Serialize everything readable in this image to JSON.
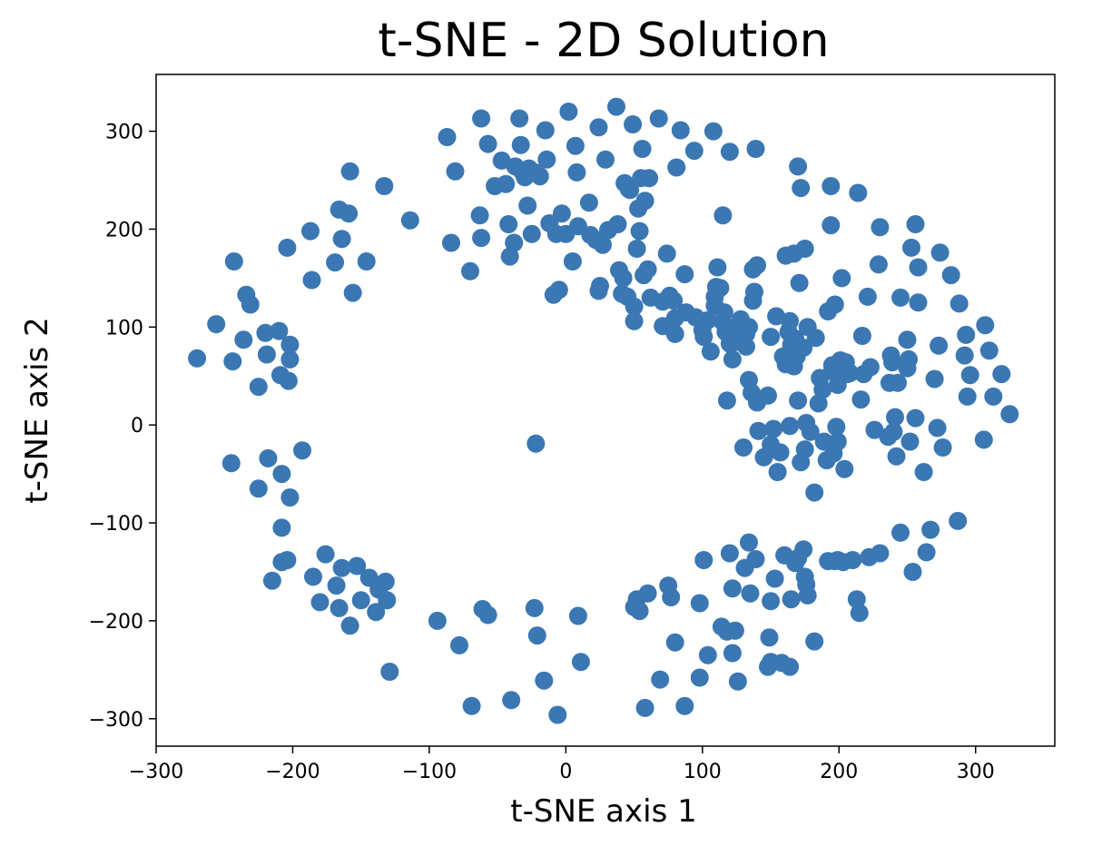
{
  "chart_data": {
    "type": "scatter",
    "title": "t-SNE - 2D Solution",
    "xlabel": "t-SNE axis 1",
    "ylabel": "t-SNE axis 2",
    "xlim": [
      -300,
      358
    ],
    "ylim": [
      -328,
      358
    ],
    "xticks": [
      -300,
      -200,
      -100,
      0,
      100,
      200,
      300
    ],
    "xtick_labels": [
      "−300",
      "−200",
      "−100",
      "0",
      "100",
      "200",
      "300"
    ],
    "yticks": [
      -300,
      -200,
      -100,
      0,
      100,
      200,
      300
    ],
    "ytick_labels": [
      "−300",
      "−200",
      "−100",
      "0",
      "100",
      "200",
      "300"
    ],
    "grid": false,
    "marker_color": "#3a77b3",
    "points": [
      [
        -270,
        68
      ],
      [
        -256,
        103
      ],
      [
        -244,
        65
      ],
      [
        -243,
        167
      ],
      [
        -236,
        87
      ],
      [
        -234,
        133
      ],
      [
        -231,
        123
      ],
      [
        -225,
        39
      ],
      [
        -220,
        94
      ],
      [
        -219,
        72
      ],
      [
        -210,
        96
      ],
      [
        -209,
        51
      ],
      [
        -203,
        45
      ],
      [
        -202,
        67
      ],
      [
        -202,
        82
      ],
      [
        -204,
        181
      ],
      [
        -187,
        198
      ],
      [
        -186,
        148
      ],
      [
        -169,
        166
      ],
      [
        -164,
        190
      ],
      [
        -166,
        220
      ],
      [
        -159,
        216
      ],
      [
        -158,
        259
      ],
      [
        -156,
        135
      ],
      [
        -146,
        167
      ],
      [
        -133,
        244
      ],
      [
        -114,
        209
      ],
      [
        -87,
        294
      ],
      [
        -84,
        186
      ],
      [
        -81,
        259
      ],
      [
        -70,
        157
      ],
      [
        -62,
        313
      ],
      [
        -63,
        214
      ],
      [
        -62,
        191
      ],
      [
        -57,
        287
      ],
      [
        -52,
        244
      ],
      [
        -47,
        270
      ],
      [
        -44,
        246
      ],
      [
        -42,
        205
      ],
      [
        -41,
        172
      ],
      [
        -38,
        186
      ],
      [
        -37,
        264
      ],
      [
        -34,
        313
      ],
      [
        -33,
        286
      ],
      [
        -32,
        259
      ],
      [
        -30,
        253
      ],
      [
        -28,
        224
      ],
      [
        -27,
        262
      ],
      [
        -25,
        195
      ],
      [
        -23,
        258
      ],
      [
        -19,
        254
      ],
      [
        -14,
        271
      ],
      [
        -15,
        301
      ],
      [
        -12,
        206
      ],
      [
        -9,
        133
      ],
      [
        -7,
        195
      ],
      [
        -5,
        138
      ],
      [
        -3,
        216
      ],
      [
        0,
        195
      ],
      [
        2,
        320
      ],
      [
        5,
        167
      ],
      [
        7,
        285
      ],
      [
        8,
        258
      ],
      [
        9,
        203
      ],
      [
        17,
        227
      ],
      [
        18,
        194
      ],
      [
        22,
        189
      ],
      [
        24,
        137
      ],
      [
        24,
        304
      ],
      [
        25,
        142
      ],
      [
        27,
        184
      ],
      [
        29,
        271
      ],
      [
        31,
        199
      ],
      [
        37,
        325
      ],
      [
        38,
        205
      ],
      [
        39,
        158
      ],
      [
        41,
        134
      ],
      [
        42,
        150
      ],
      [
        43,
        247
      ],
      [
        45,
        131
      ],
      [
        46,
        241
      ],
      [
        47,
        240
      ],
      [
        49,
        307
      ],
      [
        50,
        121
      ],
      [
        50,
        106
      ],
      [
        52,
        180
      ],
      [
        53,
        221
      ],
      [
        54,
        198
      ],
      [
        55,
        252
      ],
      [
        56,
        282
      ],
      [
        57,
        153
      ],
      [
        58,
        229
      ],
      [
        60,
        159
      ],
      [
        61,
        252
      ],
      [
        62,
        130
      ],
      [
        68,
        313
      ],
      [
        71,
        126
      ],
      [
        71,
        101
      ],
      [
        74,
        175
      ],
      [
        76,
        132
      ],
      [
        79,
        127
      ],
      [
        80,
        93
      ],
      [
        80,
        109
      ],
      [
        81,
        263
      ],
      [
        84,
        301
      ],
      [
        87,
        154
      ],
      [
        88,
        115
      ],
      [
        94,
        280
      ],
      [
        95,
        110
      ],
      [
        100,
        97
      ],
      [
        101,
        90
      ],
      [
        104,
        107
      ],
      [
        108,
        300
      ],
      [
        106,
        75
      ],
      [
        109,
        131
      ],
      [
        109,
        122
      ],
      [
        110,
        141
      ],
      [
        111,
        161
      ],
      [
        113,
        140
      ],
      [
        115,
        105
      ],
      [
        115,
        214
      ],
      [
        116,
        115
      ],
      [
        117,
        95
      ],
      [
        118,
        25
      ],
      [
        120,
        83
      ],
      [
        122,
        67
      ],
      [
        120,
        279
      ],
      [
        122,
        99
      ],
      [
        125,
        85
      ],
      [
        128,
        108
      ],
      [
        132,
        93
      ],
      [
        132,
        80
      ],
      [
        134,
        100
      ],
      [
        137,
        159
      ],
      [
        137,
        127
      ],
      [
        138,
        136
      ],
      [
        140,
        163
      ],
      [
        139,
        282
      ],
      [
        134,
        46
      ],
      [
        136,
        33
      ],
      [
        130,
        -23
      ],
      [
        140,
        23
      ],
      [
        141,
        -6
      ],
      [
        145,
        -33
      ],
      [
        148,
        30
      ],
      [
        150,
        90
      ],
      [
        150,
        -20
      ],
      [
        152,
        -4
      ],
      [
        154,
        111
      ],
      [
        155,
        -48
      ],
      [
        157,
        -28
      ],
      [
        159,
        70
      ],
      [
        161,
        62
      ],
      [
        161,
        173
      ],
      [
        163,
        95
      ],
      [
        164,
        -1
      ],
      [
        164,
        106
      ],
      [
        165,
        82
      ],
      [
        166,
        75
      ],
      [
        167,
        175
      ],
      [
        167,
        60
      ],
      [
        168,
        88
      ],
      [
        169,
        70
      ],
      [
        170,
        25
      ],
      [
        170,
        264
      ],
      [
        171,
        145
      ],
      [
        172,
        242
      ],
      [
        172,
        -38
      ],
      [
        174,
        79
      ],
      [
        175,
        180
      ],
      [
        175,
        -25
      ],
      [
        176,
        2
      ],
      [
        177,
        100
      ],
      [
        179,
        -7
      ],
      [
        182,
        -69
      ],
      [
        183,
        89
      ],
      [
        185,
        22
      ],
      [
        186,
        48
      ],
      [
        188,
        36
      ],
      [
        189,
        -17
      ],
      [
        191,
        -36
      ],
      [
        192,
        116
      ],
      [
        194,
        204
      ],
      [
        194,
        244
      ],
      [
        195,
        61
      ],
      [
        195,
        55
      ],
      [
        196,
        -29
      ],
      [
        197,
        123
      ],
      [
        198,
        -2
      ],
      [
        199,
        41
      ],
      [
        199,
        -17
      ],
      [
        200,
        54
      ],
      [
        201,
        66
      ],
      [
        202,
        150
      ],
      [
        204,
        -45
      ],
      [
        205,
        64
      ],
      [
        206,
        52
      ],
      [
        208,
        53
      ],
      [
        214,
        237
      ],
      [
        216,
        26
      ],
      [
        217,
        91
      ],
      [
        218,
        52
      ],
      [
        221,
        131
      ],
      [
        223,
        59
      ],
      [
        226,
        -5
      ],
      [
        229,
        164
      ],
      [
        230,
        202
      ],
      [
        236,
        -12
      ],
      [
        237,
        43
      ],
      [
        238,
        71
      ],
      [
        239,
        64
      ],
      [
        240,
        -7
      ],
      [
        241,
        8
      ],
      [
        242,
        -32
      ],
      [
        243,
        43
      ],
      [
        245,
        130
      ],
      [
        250,
        87
      ],
      [
        250,
        58
      ],
      [
        251,
        67
      ],
      [
        252,
        -17
      ],
      [
        253,
        181
      ],
      [
        256,
        205
      ],
      [
        256,
        7
      ],
      [
        258,
        125
      ],
      [
        258,
        161
      ],
      [
        262,
        -48
      ],
      [
        270,
        47
      ],
      [
        272,
        -3
      ],
      [
        273,
        81
      ],
      [
        274,
        176
      ],
      [
        276,
        -23
      ],
      [
        282,
        153
      ],
      [
        288,
        124
      ],
      [
        292,
        71
      ],
      [
        293,
        92
      ],
      [
        294,
        29
      ],
      [
        296,
        51
      ],
      [
        306,
        -15
      ],
      [
        307,
        102
      ],
      [
        310,
        76
      ],
      [
        313,
        29
      ],
      [
        319,
        52
      ],
      [
        325,
        11
      ],
      [
        -245,
        -39
      ],
      [
        -225,
        -65
      ],
      [
        -218,
        -34
      ],
      [
        -208,
        -50
      ],
      [
        -202,
        -74
      ],
      [
        -193,
        -26
      ],
      [
        -208,
        -105
      ],
      [
        -208,
        -140
      ],
      [
        -204,
        -138
      ],
      [
        -215,
        -159
      ],
      [
        -185,
        -155
      ],
      [
        -180,
        -181
      ],
      [
        -176,
        -132
      ],
      [
        -168,
        -164
      ],
      [
        -166,
        -187
      ],
      [
        -164,
        -146
      ],
      [
        -158,
        -205
      ],
      [
        -153,
        -144
      ],
      [
        -150,
        -179
      ],
      [
        -144,
        -156
      ],
      [
        -139,
        -191
      ],
      [
        -137,
        -168
      ],
      [
        -132,
        -160
      ],
      [
        -131,
        -179
      ],
      [
        -129,
        -252
      ],
      [
        -94,
        -200
      ],
      [
        -78,
        -225
      ],
      [
        -69,
        -287
      ],
      [
        -61,
        -188
      ],
      [
        -57,
        -194
      ],
      [
        -40,
        -281
      ],
      [
        -23,
        -187
      ],
      [
        -21,
        -215
      ],
      [
        -16,
        -261
      ],
      [
        -6,
        -296
      ],
      [
        9,
        -195
      ],
      [
        11,
        -242
      ],
      [
        50,
        -186
      ],
      [
        52,
        -178
      ],
      [
        54,
        -190
      ],
      [
        58,
        -289
      ],
      [
        60,
        -172
      ],
      [
        69,
        -260
      ],
      [
        75,
        -164
      ],
      [
        77,
        -176
      ],
      [
        80,
        -222
      ],
      [
        87,
        -287
      ],
      [
        98,
        -258
      ],
      [
        98,
        -182
      ],
      [
        101,
        -138
      ],
      [
        104,
        -235
      ],
      [
        114,
        -206
      ],
      [
        118,
        -211
      ],
      [
        120,
        -131
      ],
      [
        122,
        -167
      ],
      [
        122,
        -233
      ],
      [
        124,
        -210
      ],
      [
        126,
        -262
      ],
      [
        131,
        -146
      ],
      [
        134,
        -120
      ],
      [
        135,
        -172
      ],
      [
        139,
        -137
      ],
      [
        148,
        -247
      ],
      [
        150,
        -180
      ],
      [
        149,
        -217
      ],
      [
        150,
        -242
      ],
      [
        153,
        -157
      ],
      [
        158,
        -243
      ],
      [
        160,
        -133
      ],
      [
        164,
        -247
      ],
      [
        165,
        -178
      ],
      [
        168,
        -141
      ],
      [
        170,
        -136
      ],
      [
        174,
        -127
      ],
      [
        175,
        -155
      ],
      [
        176,
        -163
      ],
      [
        177,
        -174
      ],
      [
        182,
        -221
      ],
      [
        192,
        -139
      ],
      [
        197,
        -139
      ],
      [
        199,
        -138
      ],
      [
        203,
        -140
      ],
      [
        210,
        -138
      ],
      [
        213,
        -178
      ],
      [
        215,
        -192
      ],
      [
        222,
        -135
      ],
      [
        230,
        -131
      ],
      [
        245,
        -110
      ],
      [
        254,
        -150
      ],
      [
        264,
        -130
      ],
      [
        267,
        -107
      ],
      [
        287,
        -98
      ],
      [
        -22,
        -19
      ]
    ]
  }
}
